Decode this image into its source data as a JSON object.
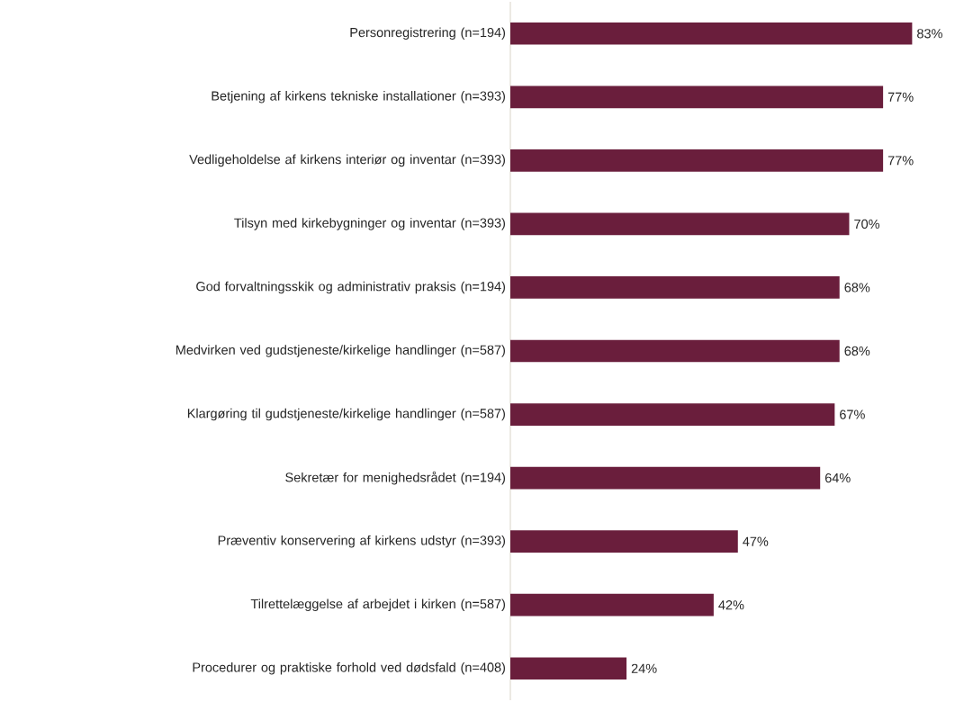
{
  "chart_data": {
    "type": "bar",
    "orientation": "horizontal",
    "categories": [
      "Personregistrering (n=194)",
      "Betjening af kirkens tekniske installationer (n=393)",
      "Vedligeholdelse af kirkens interiør og inventar (n=393)",
      "Tilsyn med kirkebygninger og inventar (n=393)",
      "God forvaltningsskik og administrativ praksis (n=194)",
      "Medvirken ved gudstjeneste/kirkelige handlinger (n=587)",
      "Klargøring til gudstjeneste/kirkelige handlinger (n=587)",
      "Sekretær for menighedsrådet (n=194)",
      "Præventiv konservering af kirkens udstyr (n=393)",
      "Tilrettelæggelse af arbejdet i kirken (n=587)",
      "Procedurer og praktiske forhold ved dødsfald (n=408)"
    ],
    "values": [
      83,
      77,
      77,
      70,
      68,
      68,
      67,
      64,
      47,
      42,
      24
    ],
    "value_labels": [
      "83%",
      "77%",
      "77%",
      "70%",
      "68%",
      "68%",
      "67%",
      "64%",
      "47%",
      "42%",
      "24%"
    ],
    "color": "#6a1e3c"
  }
}
